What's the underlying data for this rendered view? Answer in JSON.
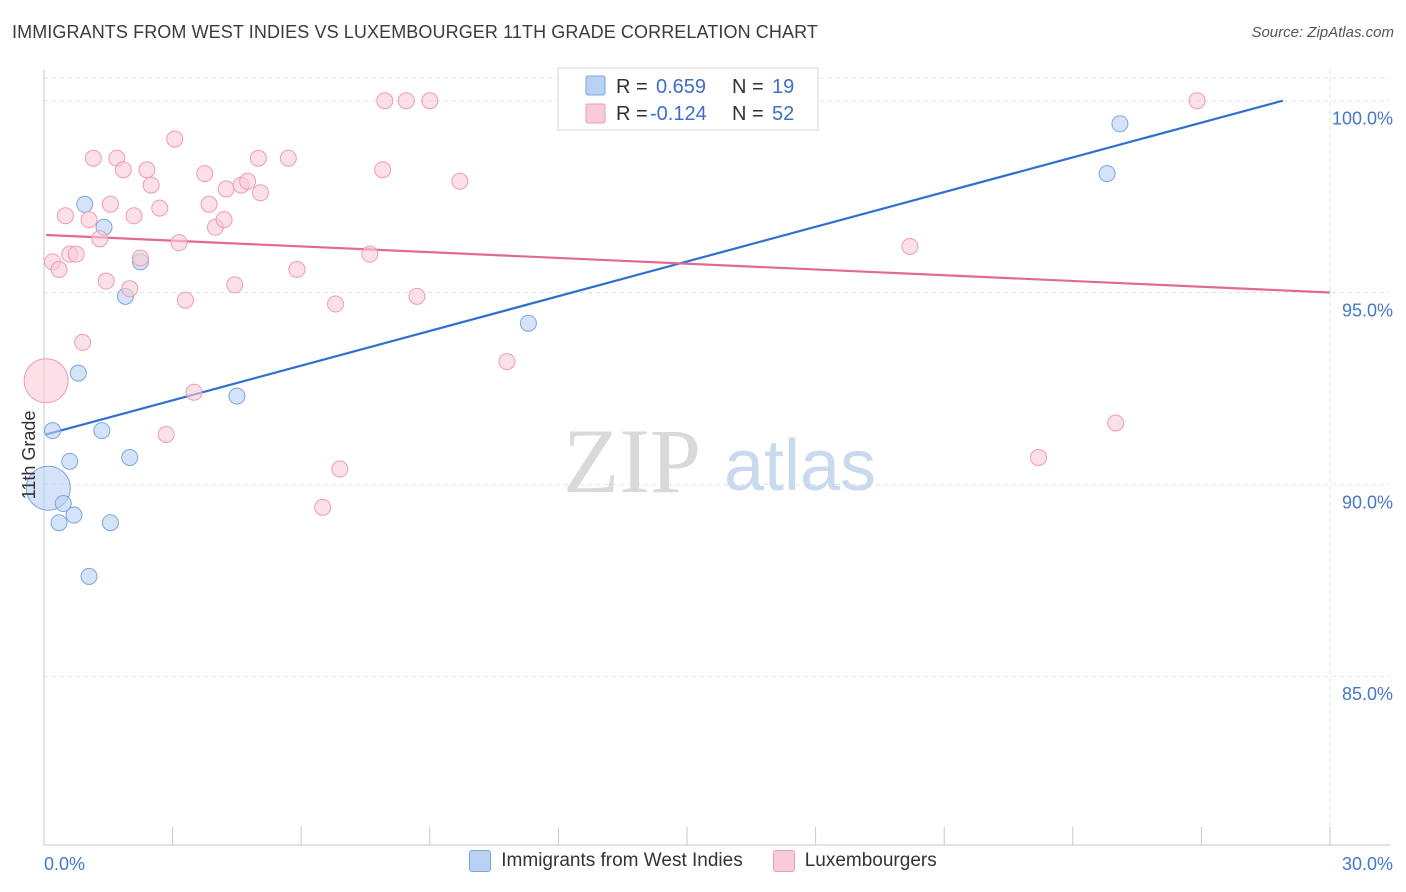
{
  "title": "IMMIGRANTS FROM WEST INDIES VS LUXEMBOURGER 11TH GRADE CORRELATION CHART",
  "source": "Source: ZipAtlas.com",
  "watermark": {
    "zip": "ZIP",
    "atlas": "atlas"
  },
  "chart_data": {
    "type": "scatter",
    "xlabel": "",
    "ylabel": "11th Grade",
    "xlim": [
      0,
      30
    ],
    "ylim": [
      80.6,
      100.8
    ],
    "x_tick_labels": [
      "0.0%",
      "30.0%"
    ],
    "y_ticks": [
      85,
      90,
      95,
      100
    ],
    "y_tick_labels": [
      "85.0%",
      "90.0%",
      "95.0%",
      "100.0%"
    ],
    "grid": true,
    "legend": {
      "position": "top-center"
    },
    "stats": [
      {
        "r_label": "R =",
        "r": "0.659",
        "n_label": "N =",
        "n": "19"
      },
      {
        "r_label": "R =",
        "r": "-0.124",
        "n_label": "N =",
        "n": "52"
      }
    ],
    "series": [
      {
        "name": "Immigrants from West Indies",
        "color": "#7aa6e0",
        "fill": "#b9d1f3",
        "trend_color": "#2f6fcf",
        "trend": {
          "x0": 0.05,
          "y0": 91.3,
          "x1": 28.9,
          "y1": 100.0
        },
        "points": [
          {
            "x": 0.1,
            "y": 89.9,
            "big": true
          },
          {
            "x": 0.2,
            "y": 91.4
          },
          {
            "x": 0.35,
            "y": 89.0
          },
          {
            "x": 0.45,
            "y": 89.5
          },
          {
            "x": 0.6,
            "y": 90.6
          },
          {
            "x": 0.7,
            "y": 89.2
          },
          {
            "x": 0.8,
            "y": 92.9
          },
          {
            "x": 0.95,
            "y": 97.3
          },
          {
            "x": 1.05,
            "y": 87.6
          },
          {
            "x": 1.35,
            "y": 91.4
          },
          {
            "x": 1.4,
            "y": 96.7
          },
          {
            "x": 1.55,
            "y": 89.0
          },
          {
            "x": 1.9,
            "y": 94.9
          },
          {
            "x": 2.0,
            "y": 90.7
          },
          {
            "x": 2.25,
            "y": 95.8
          },
          {
            "x": 4.5,
            "y": 92.3
          },
          {
            "x": 11.3,
            "y": 94.2
          },
          {
            "x": 24.8,
            "y": 98.1
          },
          {
            "x": 25.1,
            "y": 99.4
          }
        ]
      },
      {
        "name": "Luxembourgers",
        "color": "#ef9bb6",
        "fill": "#f9cbd9",
        "trend_color": "#e06a94",
        "trend": {
          "x0": 0.05,
          "y0": 96.5,
          "x1": 30.0,
          "y1": 95.0
        },
        "points": [
          {
            "x": 0.05,
            "y": 92.7,
            "big": true
          },
          {
            "x": 0.2,
            "y": 95.8
          },
          {
            "x": 0.35,
            "y": 95.6
          },
          {
            "x": 0.5,
            "y": 97.0
          },
          {
            "x": 0.6,
            "y": 96.0
          },
          {
            "x": 0.75,
            "y": 96.0
          },
          {
            "x": 0.9,
            "y": 93.7
          },
          {
            "x": 1.05,
            "y": 96.9
          },
          {
            "x": 1.15,
            "y": 98.5
          },
          {
            "x": 1.3,
            "y": 96.4
          },
          {
            "x": 1.45,
            "y": 95.3
          },
          {
            "x": 1.55,
            "y": 97.3
          },
          {
            "x": 1.7,
            "y": 98.5
          },
          {
            "x": 1.85,
            "y": 98.2
          },
          {
            "x": 2.0,
            "y": 95.1
          },
          {
            "x": 2.1,
            "y": 97.0
          },
          {
            "x": 2.25,
            "y": 95.9
          },
          {
            "x": 2.4,
            "y": 98.2
          },
          {
            "x": 2.5,
            "y": 97.8
          },
          {
            "x": 2.7,
            "y": 97.2
          },
          {
            "x": 2.85,
            "y": 91.3
          },
          {
            "x": 3.05,
            "y": 99.0
          },
          {
            "x": 3.15,
            "y": 96.3
          },
          {
            "x": 3.3,
            "y": 94.8
          },
          {
            "x": 3.5,
            "y": 92.4
          },
          {
            "x": 3.75,
            "y": 98.1
          },
          {
            "x": 3.85,
            "y": 97.3
          },
          {
            "x": 4.0,
            "y": 96.7
          },
          {
            "x": 4.2,
            "y": 96.9
          },
          {
            "x": 4.25,
            "y": 97.7
          },
          {
            "x": 4.45,
            "y": 95.2
          },
          {
            "x": 4.6,
            "y": 97.8
          },
          {
            "x": 4.75,
            "y": 97.9
          },
          {
            "x": 5.0,
            "y": 98.5
          },
          {
            "x": 5.05,
            "y": 97.6
          },
          {
            "x": 5.7,
            "y": 98.5
          },
          {
            "x": 5.9,
            "y": 95.6
          },
          {
            "x": 6.5,
            "y": 89.4
          },
          {
            "x": 6.8,
            "y": 94.7
          },
          {
            "x": 6.9,
            "y": 90.4
          },
          {
            "x": 7.6,
            "y": 96.0
          },
          {
            "x": 7.9,
            "y": 98.2
          },
          {
            "x": 7.95,
            "y": 100.0
          },
          {
            "x": 8.45,
            "y": 100.0
          },
          {
            "x": 8.7,
            "y": 94.9
          },
          {
            "x": 9.0,
            "y": 100.0
          },
          {
            "x": 9.7,
            "y": 97.9
          },
          {
            "x": 10.8,
            "y": 93.2
          },
          {
            "x": 20.2,
            "y": 96.2
          },
          {
            "x": 23.2,
            "y": 90.7
          },
          {
            "x": 25.0,
            "y": 91.6
          },
          {
            "x": 26.9,
            "y": 100.0
          }
        ]
      }
    ]
  }
}
